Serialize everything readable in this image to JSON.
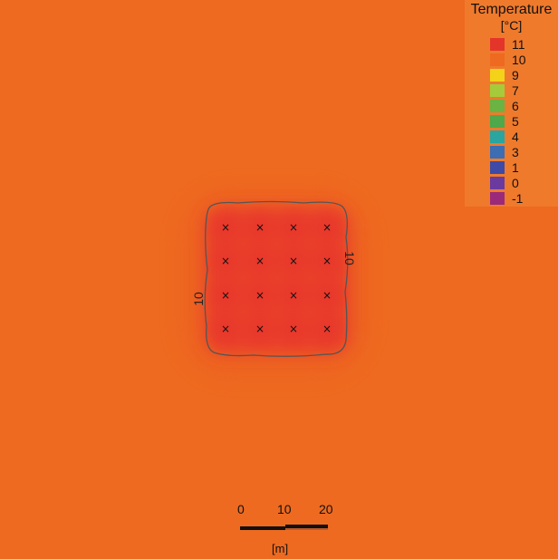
{
  "map": {
    "background_color": "#ee6a20",
    "contour_label_right": "10",
    "contour_label_left": "10",
    "borehole_marker": "×",
    "borehole_count": 16
  },
  "legend": {
    "title": "Temperature",
    "unit": "[°C]",
    "items": [
      {
        "label": "11",
        "color": "#e4352a"
      },
      {
        "label": "10",
        "color": "#ee6a20"
      },
      {
        "label": "9",
        "color": "#f5d21a"
      },
      {
        "label": "7",
        "color": "#a6cb3a"
      },
      {
        "label": "6",
        "color": "#6bb342"
      },
      {
        "label": "5",
        "color": "#4fa84a"
      },
      {
        "label": "4",
        "color": "#2aa5a0"
      },
      {
        "label": "3",
        "color": "#3d6db3"
      },
      {
        "label": "1",
        "color": "#3e4aa5"
      },
      {
        "label": "0",
        "color": "#6a3a9e"
      },
      {
        "label": "-1",
        "color": "#9b2a7a"
      }
    ]
  },
  "scale_bar": {
    "ticks": [
      "0",
      "10",
      "20"
    ],
    "unit": "[m]"
  }
}
